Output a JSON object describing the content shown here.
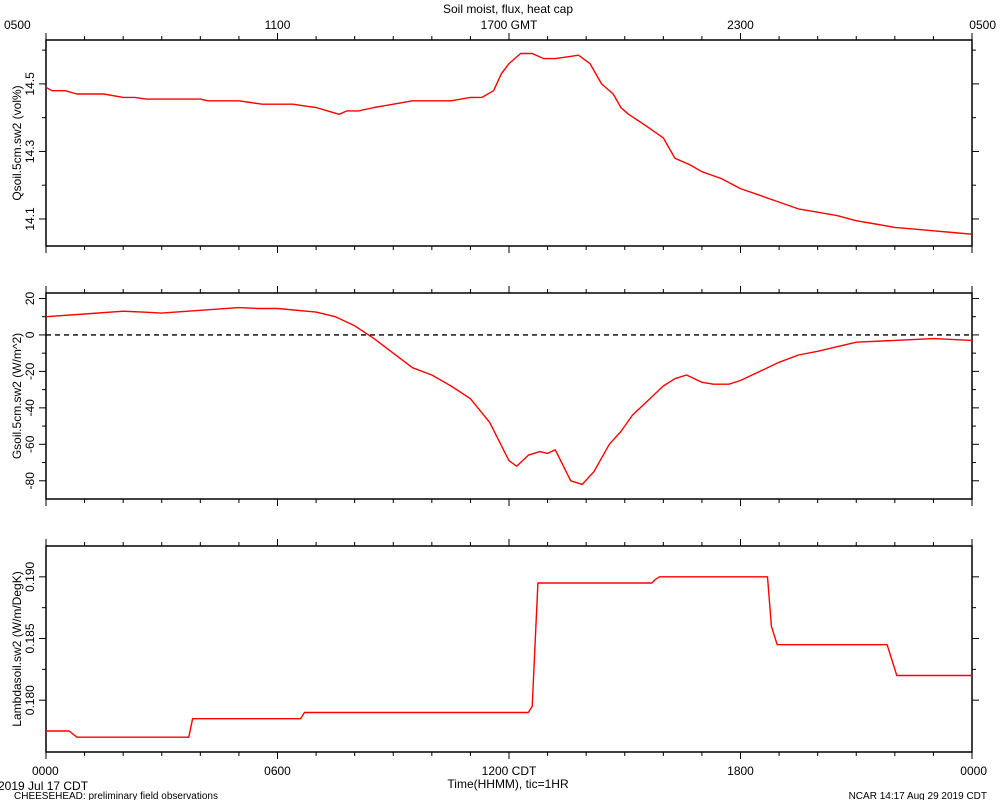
{
  "chart_data": {
    "type": "line",
    "title": "Soil moist, flux, heat cap",
    "top_time_axis": {
      "ticks": [
        "0500",
        "1100",
        "1700 GMT",
        "2300",
        "0500"
      ],
      "tick_hours": [
        0,
        6,
        12,
        18,
        24
      ]
    },
    "bottom_time_axis": {
      "label": "Time(HHMM), tic=1HR",
      "ticks": [
        "0000",
        "0600",
        "1200 CDT",
        "1800",
        "0000"
      ],
      "tick_hours": [
        0,
        6,
        12,
        18,
        24
      ],
      "range": [
        0,
        24
      ]
    },
    "footer": {
      "date": "2019 Jul 17 CDT",
      "project": "CHEESEHEAD: preliminary field observations",
      "stamp": "NCAR 14:17 Aug 29 2019 CDT"
    },
    "panels": [
      {
        "ylabel": "Qsoil.5cm.sw2 (vol%)",
        "ylim": [
          14.02,
          14.63
        ],
        "yticks": [
          14.1,
          14.3,
          14.5
        ],
        "ytick_labels": [
          "14.1",
          "14.3",
          "14.5"
        ],
        "color": "#ff0000",
        "series": [
          {
            "x": [
              0,
              0.15,
              0.5,
              0.8,
              1.2,
              1.5,
              2.0,
              2.3,
              2.6,
              3.0,
              3.5,
              4.0,
              4.2,
              4.5,
              5.0,
              5.3,
              5.6,
              6.0,
              6.4,
              6.7,
              7.0,
              7.3,
              7.6,
              7.8,
              8.1,
              8.5,
              9.0,
              9.5,
              10.0,
              10.5,
              11.0,
              11.3,
              11.6,
              11.8,
              12.0,
              12.3,
              12.6,
              12.9,
              13.2,
              13.5,
              13.8,
              14.1,
              14.4,
              14.7,
              14.9,
              15.1,
              15.5,
              16.0,
              16.3,
              16.7,
              17.0,
              17.5,
              18.0,
              18.5,
              19.0,
              19.5,
              20.0,
              20.5,
              21.0,
              21.5,
              22.0,
              22.5,
              23.0,
              23.5,
              24.0
            ],
            "y": [
              14.49,
              14.48,
              14.48,
              14.47,
              14.47,
              14.47,
              14.46,
              14.46,
              14.455,
              14.455,
              14.455,
              14.455,
              14.45,
              14.45,
              14.45,
              14.445,
              14.44,
              14.44,
              14.44,
              14.435,
              14.43,
              14.42,
              14.41,
              14.42,
              14.42,
              14.43,
              14.44,
              14.45,
              14.45,
              14.45,
              14.46,
              14.46,
              14.48,
              14.53,
              14.56,
              14.59,
              14.59,
              14.575,
              14.575,
              14.58,
              14.585,
              14.56,
              14.5,
              14.47,
              14.43,
              14.41,
              14.38,
              14.34,
              14.28,
              14.26,
              14.24,
              14.22,
              14.19,
              14.17,
              14.15,
              14.13,
              14.12,
              14.11,
              14.095,
              14.085,
              14.075,
              14.07,
              14.065,
              14.06,
              14.055
            ]
          }
        ]
      },
      {
        "ylabel": "Gsoil.5cm.sw2 (W/m^2)",
        "ylim": [
          -90,
          23
        ],
        "yticks": [
          -80,
          -60,
          -40,
          -20,
          0,
          20
        ],
        "ytick_labels": [
          "-80",
          "-60",
          "-40",
          "-20",
          "0",
          "20"
        ],
        "color": "#ff0000",
        "zero_line": true,
        "series": [
          {
            "x": [
              0,
              1,
              2,
              2.5,
              3,
              4,
              5,
              5.5,
              6,
              7,
              7.5,
              8,
              8.5,
              9,
              9.5,
              10,
              10.5,
              11,
              11.5,
              12,
              12.2,
              12.5,
              12.8,
              13.0,
              13.2,
              13.6,
              13.9,
              14.2,
              14.6,
              14.9,
              15.2,
              15.6,
              16.0,
              16.3,
              16.6,
              17.0,
              17.3,
              17.7,
              18.0,
              18.5,
              19.0,
              19.5,
              20.0,
              21.0,
              22.0,
              23.0,
              24.0
            ],
            "y": [
              10,
              11.5,
              13,
              12.5,
              12,
              13.5,
              15,
              14.5,
              14.5,
              12.5,
              10,
              5,
              -2,
              -10,
              -18,
              -22,
              -28,
              -35,
              -48,
              -69,
              -72,
              -66,
              -64,
              -65,
              -63,
              -80,
              -82,
              -75,
              -60,
              -53,
              -44,
              -36,
              -28,
              -24,
              -22,
              -26,
              -27,
              -27,
              -25,
              -20,
              -15,
              -11,
              -9,
              -4,
              -3,
              -2,
              -3
            ]
          }
        ]
      },
      {
        "ylabel": "Lambdasoil.sw2 (W/m/DegK)",
        "ylim": [
          0.1758,
          0.1925
        ],
        "yticks": [
          0.18,
          0.185,
          0.19
        ],
        "ytick_labels": [
          "0.180",
          "0.185",
          "0.190"
        ],
        "color": "#ff0000",
        "series": [
          {
            "x": [
              0,
              0.6,
              0.8,
              3.0,
              3.7,
              3.8,
              6.5,
              6.6,
              6.7,
              12.5,
              12.6,
              12.75,
              15.7,
              15.8,
              15.9,
              18.7,
              18.8,
              18.95,
              21.8,
              21.9,
              22.05,
              24
            ],
            "y": [
              0.1775,
              0.1775,
              0.177,
              0.177,
              0.177,
              0.1785,
              0.1785,
              0.1785,
              0.179,
              0.179,
              0.1795,
              0.1895,
              0.1895,
              0.1898,
              0.19,
              0.19,
              0.186,
              0.1845,
              0.1845,
              0.1835,
              0.182,
              0.182
            ]
          }
        ]
      }
    ]
  }
}
